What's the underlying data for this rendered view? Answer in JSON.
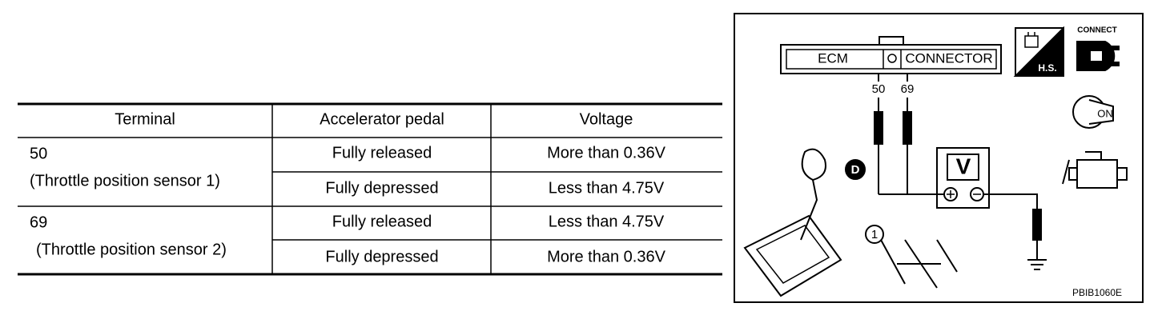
{
  "table": {
    "header": [
      "Terminal",
      "Accelerator pedal",
      "Voltage"
    ],
    "rows": [
      {
        "terminal": "50",
        "terminal_note": "(Throttle position sensor 1)",
        "conditions": [
          [
            "Fully released",
            "More than 0.36V"
          ],
          [
            "Fully depressed",
            "Less than 4.75V"
          ]
        ]
      },
      {
        "terminal": "69",
        "terminal_note": "(Throttle position sensor 2)",
        "conditions": [
          [
            "Fully released",
            "Less than 4.75V"
          ],
          [
            "Fully depressed",
            "More than 0.36V"
          ]
        ]
      }
    ]
  },
  "diagram": {
    "connector_left": "ECM",
    "connector_right": "CONNECTOR",
    "hs_label": "H.S.",
    "connect_label": "CONNECT",
    "probe_labels": [
      "50",
      "69"
    ],
    "meter_label": "V",
    "key_label": "ON",
    "marker_d": "D",
    "callout_1": "1",
    "figure_id": "PBIB1060E"
  }
}
